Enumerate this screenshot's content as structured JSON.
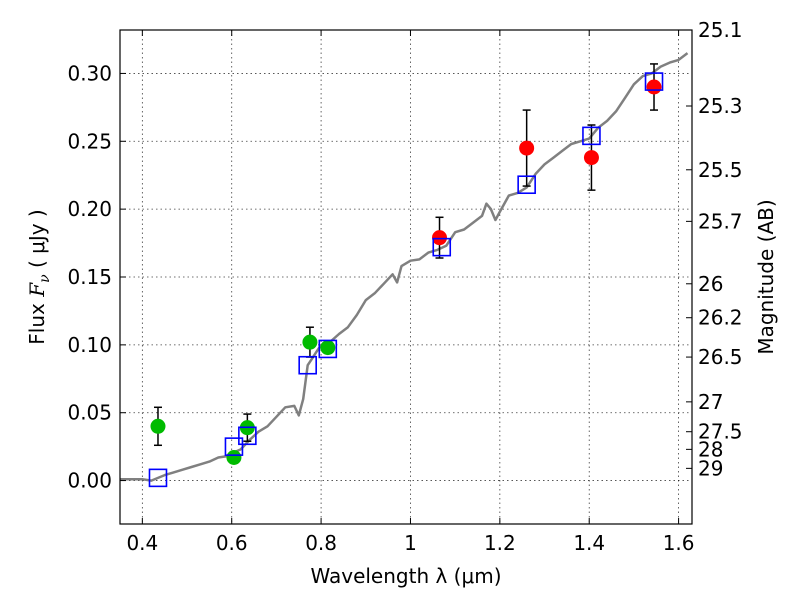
{
  "chart_data": {
    "type": "scatter",
    "title": "",
    "xlabel": "Wavelength  λ (μm)",
    "ylabel": "Flux  F_ν  ( μJy )",
    "ylabel_parts": {
      "pre": "Flux  ",
      "sym": "F",
      "sub": "ν",
      "post": "  ( μJy )"
    },
    "y2label": "Magnitude (AB)",
    "xlim": [
      0.35,
      1.63
    ],
    "ylim": [
      -0.032,
      0.332
    ],
    "grid": true,
    "x_ticks": [
      0.4,
      0.6,
      0.8,
      1.0,
      1.2,
      1.4,
      1.6
    ],
    "x_tick_labels": [
      "0.4",
      "0.6",
      "0.8",
      "1",
      "1.2",
      "1.4",
      "1.6"
    ],
    "y_ticks": [
      0.0,
      0.05,
      0.1,
      0.15,
      0.2,
      0.25,
      0.3
    ],
    "y_tick_labels": [
      "0.00",
      "0.05",
      "0.10",
      "0.15",
      "0.20",
      "0.25",
      "0.30"
    ],
    "mag_ticks": [
      {
        "label": "25.1",
        "flux": 0.332
      },
      {
        "label": "25.3",
        "flux": 0.276
      },
      {
        "label": "25.5",
        "flux": 0.229
      },
      {
        "label": "25.7",
        "flux": 0.191
      },
      {
        "label": "26",
        "flux": 0.145
      },
      {
        "label": "26.2",
        "flux": 0.12
      },
      {
        "label": "26.5",
        "flux": 0.091
      },
      {
        "label": "27",
        "flux": 0.058
      },
      {
        "label": "27.5",
        "flux": 0.036
      },
      {
        "label": "28",
        "flux": 0.023
      },
      {
        "label": "29",
        "flux": 0.009
      }
    ],
    "colors": {
      "model": "#808080",
      "green": "#00bb00",
      "red": "#ff0000",
      "square": "#0000ff",
      "errorbar": "#000000"
    },
    "series": [
      {
        "type": "line",
        "points": [
          [
            0.35,
            0.001
          ],
          [
            0.38,
            0.001
          ],
          [
            0.4,
            0.001
          ],
          [
            0.42,
            0.0
          ],
          [
            0.435,
            0.002
          ],
          [
            0.45,
            0.004
          ],
          [
            0.47,
            0.006
          ],
          [
            0.49,
            0.008
          ],
          [
            0.51,
            0.01
          ],
          [
            0.53,
            0.012
          ],
          [
            0.55,
            0.014
          ],
          [
            0.57,
            0.017
          ],
          [
            0.59,
            0.018
          ],
          [
            0.6,
            0.02
          ],
          [
            0.62,
            0.023
          ],
          [
            0.64,
            0.03
          ],
          [
            0.66,
            0.036
          ],
          [
            0.68,
            0.04
          ],
          [
            0.7,
            0.047
          ],
          [
            0.72,
            0.054
          ],
          [
            0.74,
            0.055
          ],
          [
            0.75,
            0.048
          ],
          [
            0.76,
            0.06
          ],
          [
            0.77,
            0.085
          ],
          [
            0.78,
            0.09
          ],
          [
            0.79,
            0.095
          ],
          [
            0.8,
            0.1
          ],
          [
            0.82,
            0.102
          ],
          [
            0.84,
            0.108
          ],
          [
            0.86,
            0.113
          ],
          [
            0.88,
            0.122
          ],
          [
            0.9,
            0.133
          ],
          [
            0.92,
            0.138
          ],
          [
            0.94,
            0.145
          ],
          [
            0.96,
            0.152
          ],
          [
            0.97,
            0.146
          ],
          [
            0.98,
            0.158
          ],
          [
            1.0,
            0.162
          ],
          [
            1.02,
            0.163
          ],
          [
            1.04,
            0.168
          ],
          [
            1.06,
            0.17
          ],
          [
            1.08,
            0.173
          ],
          [
            1.1,
            0.183
          ],
          [
            1.12,
            0.185
          ],
          [
            1.14,
            0.19
          ],
          [
            1.16,
            0.195
          ],
          [
            1.17,
            0.204
          ],
          [
            1.18,
            0.2
          ],
          [
            1.19,
            0.192
          ],
          [
            1.2,
            0.198
          ],
          [
            1.22,
            0.21
          ],
          [
            1.24,
            0.212
          ],
          [
            1.26,
            0.216
          ],
          [
            1.28,
            0.226
          ],
          [
            1.3,
            0.233
          ],
          [
            1.32,
            0.238
          ],
          [
            1.34,
            0.243
          ],
          [
            1.36,
            0.248
          ],
          [
            1.38,
            0.25
          ],
          [
            1.4,
            0.252
          ],
          [
            1.42,
            0.26
          ],
          [
            1.44,
            0.265
          ],
          [
            1.46,
            0.272
          ],
          [
            1.48,
            0.282
          ],
          [
            1.5,
            0.292
          ],
          [
            1.52,
            0.298
          ],
          [
            1.54,
            0.3
          ],
          [
            1.56,
            0.305
          ],
          [
            1.58,
            0.308
          ],
          [
            1.6,
            0.31
          ],
          [
            1.62,
            0.315
          ]
        ]
      },
      {
        "type": "scatter",
        "marker": "circle",
        "color": "green",
        "points": [
          {
            "x": 0.435,
            "y": 0.04,
            "err": 0.014
          },
          {
            "x": 0.605,
            "y": 0.017,
            "err": null
          },
          {
            "x": 0.635,
            "y": 0.039,
            "err": 0.01
          },
          {
            "x": 0.775,
            "y": 0.102,
            "err": 0.011
          },
          {
            "x": 0.815,
            "y": 0.098,
            "err": null
          }
        ]
      },
      {
        "type": "scatter",
        "marker": "circle",
        "color": "red",
        "points": [
          {
            "x": 1.065,
            "y": 0.179,
            "err": 0.015
          },
          {
            "x": 1.26,
            "y": 0.245,
            "err": 0.028
          },
          {
            "x": 1.405,
            "y": 0.238,
            "err": 0.024
          },
          {
            "x": 1.545,
            "y": 0.29,
            "err": 0.017
          }
        ]
      },
      {
        "type": "scatter",
        "marker": "open-square",
        "color": "square",
        "points": [
          {
            "x": 0.435,
            "y": 0.002
          },
          {
            "x": 0.605,
            "y": 0.025
          },
          {
            "x": 0.635,
            "y": 0.033
          },
          {
            "x": 0.77,
            "y": 0.085
          },
          {
            "x": 0.815,
            "y": 0.097
          },
          {
            "x": 1.07,
            "y": 0.172
          },
          {
            "x": 1.26,
            "y": 0.218
          },
          {
            "x": 1.405,
            "y": 0.254
          },
          {
            "x": 1.545,
            "y": 0.294
          }
        ]
      }
    ]
  }
}
